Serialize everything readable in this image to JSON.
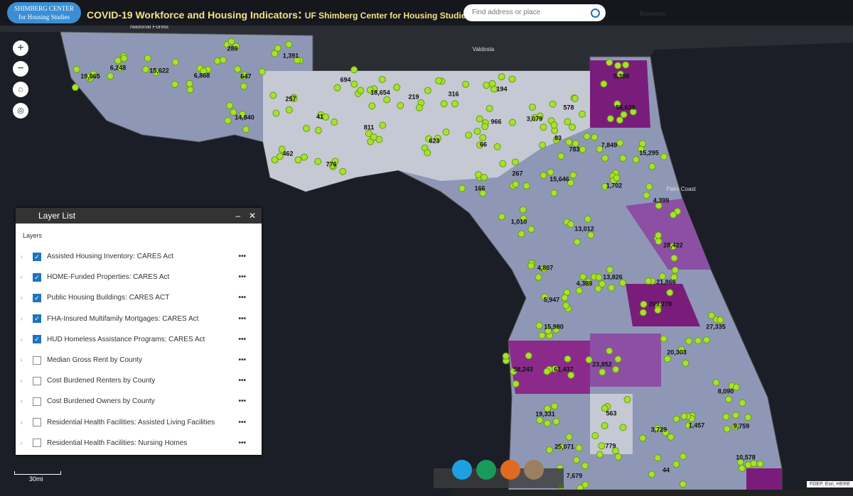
{
  "header": {
    "logo_line1": "SHIMBERG CENTER",
    "logo_line2": "for Housing Studies",
    "title": "COVID-19 Workforce and Housing Indicators",
    "separator": ":",
    "subtitle": "UF Shimberg Center for Housing Studies",
    "search_placeholder": "Find address or place"
  },
  "map": {
    "county_labels": [
      "19,065",
      "6,248",
      "15,622",
      "6,868",
      "289",
      "1,391",
      "647",
      "694",
      "18,654",
      "257",
      "219",
      "316",
      "194",
      "5,388",
      "56,639",
      "14,840",
      "41",
      "811",
      "3,079",
      "578",
      "966",
      "623",
      "66",
      "83",
      "783",
      "7,849",
      "15,295",
      "462",
      "776",
      "267",
      "15,646",
      "1,702",
      "166",
      "4,399",
      "1,010",
      "13,012",
      "28,422",
      "4,807",
      "4,389",
      "13,826",
      "21,866",
      "209,278",
      "5,947",
      "15,980",
      "27,335",
      "20,303",
      "58,243",
      "61,437",
      "23,852",
      "8,090",
      "563",
      "19,331",
      "3,729",
      "1,457",
      "9,759",
      "25,071",
      "779",
      "10,578",
      "44",
      "7,679"
    ],
    "place_labels": [
      "Valdosta",
      "Brunswick",
      "Palm Coast",
      "National Forest"
    ],
    "scale": "30mi",
    "attribution": "FDEP, Esri, HERE"
  },
  "layer_list": {
    "title": "Layer List",
    "section": "Layers",
    "layers": [
      {
        "name": "Assisted Housing Inventory: CARES Act",
        "checked": true
      },
      {
        "name": "HOME-Funded Properties: CARES Act",
        "checked": true
      },
      {
        "name": "Public Housing Buildings: CARES ACT",
        "checked": true
      },
      {
        "name": "FHA-Insured Multifamily Mortgages: CARES Act",
        "checked": true
      },
      {
        "name": "HUD Homeless Assistance Programs: CARES Act",
        "checked": true
      },
      {
        "name": "Median Gross Rent by County",
        "checked": false
      },
      {
        "name": "Cost Burdened Renters by County",
        "checked": false
      },
      {
        "name": "Cost Burdened Owners by County",
        "checked": false
      },
      {
        "name": "Residential Health Facilities: Assisted Living Facilities",
        "checked": false
      },
      {
        "name": "Residential Health Facilities: Nursing Homes",
        "checked": false
      }
    ]
  }
}
